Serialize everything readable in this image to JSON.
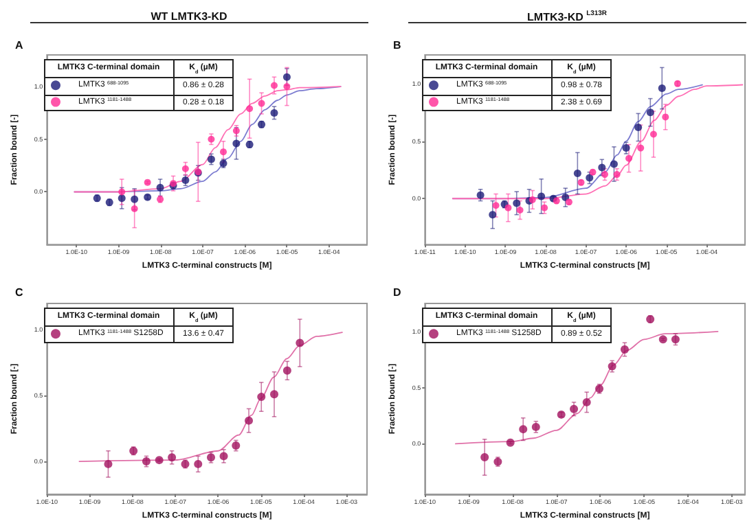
{
  "chart_data": [
    {
      "type": "scatter",
      "title": "WT LMTK3-KD",
      "subtitle": "A",
      "xlabel": "LMTK3 C-terminal constructs [M]",
      "ylabel": "Fraction bound [-]",
      "legend_title": "LMTK3 C-terminal domain",
      "legend": "top left",
      "grid": false,
      "log": "x",
      "annotations": [
        "K$_{d}$ (µM)",
        "0.86 ± 0.28",
        "0.28 ± 0.18"
      ],
      "xlim": [
        2e-11,
        0.0008
      ],
      "xticks": [
        {
          "value": 1e-10,
          "label": "1.0E-10"
        },
        {
          "value": 1e-09,
          "label": "1.0E-09"
        },
        {
          "value": 1e-08,
          "label": "1.0E-08"
        },
        {
          "value": 1e-07,
          "label": "1.0E-07"
        },
        {
          "value": 1e-06,
          "label": "1.0E-06"
        },
        {
          "value": 1e-05,
          "label": "1.0E-05"
        },
        {
          "value": 0.0001,
          "label": "1.0E-04"
        }
      ],
      "ylim": [
        -0.5,
        1.3
      ],
      "yticks": [
        {
          "value": 0,
          "label": "0.0"
        },
        {
          "value": 0.5,
          "label": "0.5"
        },
        {
          "value": 1,
          "label": "1.0"
        }
      ],
      "series": [
        {
          "type": "line",
          "marker": "none",
          "color": "#7b7bd0",
          "x": [
            9e-11,
            1e-09,
            1e-08,
            3e-08,
            1e-07,
            2e-07,
            4e-07,
            8e-07,
            1.5e-06,
            3e-06,
            6e-06,
            1e-05,
            2e-05,
            5e-05,
            0.00019
          ],
          "values": [
            0,
            0,
            0.01,
            0.03,
            0.1,
            0.19,
            0.32,
            0.48,
            0.64,
            0.78,
            0.87,
            0.92,
            0.96,
            0.98,
            1.0
          ]
        },
        {
          "type": "line",
          "marker": "none",
          "color": "#ff6eb4",
          "x": [
            9e-11,
            1e-09,
            1e-08,
            3e-08,
            1e-07,
            2e-07,
            4e-07,
            8e-07,
            1.5e-06,
            3e-06,
            6e-06,
            1e-05,
            2e-05,
            0.00019
          ],
          "values": [
            0,
            0,
            0.03,
            0.1,
            0.26,
            0.42,
            0.59,
            0.74,
            0.84,
            0.91,
            0.96,
            0.97,
            0.99,
            1.0
          ]
        },
        {
          "type": "scatter",
          "marker": "circle",
          "name": "LMTK3 $^{688-1095}$",
          "color": "#1c1c78",
          "x": [
            3.1e-10,
            6.1e-10,
            1.2e-09,
            2.4e-09,
            4.9e-09,
            9.8e-09,
            2e-08,
            3.9e-08,
            7.8e-08,
            1.6e-07,
            3.1e-07,
            6.3e-07,
            1.3e-06,
            2.5e-06,
            5e-06,
            1e-05
          ],
          "values": [
            -0.06,
            -0.1,
            -0.06,
            -0.07,
            -0.05,
            0.04,
            0.06,
            0.11,
            0.18,
            0.31,
            0.27,
            0.46,
            0.45,
            0.64,
            0.75,
            1.09
          ],
          "errors": [
            0.03,
            0.03,
            0.1,
            0.1,
            0.02,
            0.08,
            0.03,
            0.05,
            0.07,
            0.05,
            0.04,
            0.15,
            0.03,
            0.03,
            0.06,
            0.08
          ]
        },
        {
          "type": "scatter",
          "marker": "circle",
          "name": "LMTK3 $^{1181-1488}$",
          "color": "#ff2a95",
          "x": [
            1.2e-09,
            2.4e-09,
            4.9e-09,
            9.8e-09,
            2e-08,
            3.9e-08,
            7.8e-08,
            1.6e-07,
            3.1e-07,
            6.3e-07,
            1.3e-06,
            2.5e-06,
            5e-06,
            1e-05
          ],
          "values": [
            0.0,
            -0.16,
            0.09,
            -0.07,
            0.08,
            0.22,
            0.19,
            0.5,
            0.38,
            0.58,
            0.79,
            0.84,
            1.01,
            1.0
          ],
          "errors": [
            0.12,
            0.18,
            0.01,
            0.03,
            0.07,
            0.06,
            0.28,
            0.05,
            0.1,
            0.05,
            0.28,
            0.1,
            0.08,
            0.18
          ]
        }
      ]
    },
    {
      "type": "scatter",
      "title": "LMTK3-KD $^{L313R}$",
      "subtitle": "B",
      "xlabel": "LMTK3 C-terminal constructs [M]",
      "ylabel": "Fraction bound [-]",
      "legend_title": "LMTK3 C-terminal domain",
      "legend": "top left",
      "grid": false,
      "log": "x",
      "annotations": [
        "K$_{d}$ (µM)",
        "0.98 ± 0.78",
        "2.38 ± 0.69"
      ],
      "xlim": [
        1e-11,
        0.0009
      ],
      "xticks": [
        {
          "value": 1e-11,
          "label": "1.0E-11"
        },
        {
          "value": 1e-10,
          "label": "1.0E-10"
        },
        {
          "value": 1e-09,
          "label": "1.0E-09"
        },
        {
          "value": 1e-08,
          "label": "1.0E-08"
        },
        {
          "value": 1e-07,
          "label": "1.0E-07"
        },
        {
          "value": 1e-06,
          "label": "1.0E-06"
        },
        {
          "value": 1e-05,
          "label": "1.0E-05"
        },
        {
          "value": 0.0001,
          "label": "1.0E-04"
        }
      ],
      "ylim": [
        -0.4,
        1.25
      ],
      "yticks": [
        {
          "value": 0,
          "label": "0.0"
        },
        {
          "value": 0.5,
          "label": "0.5"
        },
        {
          "value": 1,
          "label": "1.0"
        }
      ],
      "series": [
        {
          "type": "line",
          "marker": "none",
          "color": "#7b7bd0",
          "x": [
            4.9e-11,
            1e-09,
            1e-08,
            1e-07,
            3e-07,
            6e-07,
            1e-06,
            2e-06,
            4e-06,
            1e-05,
            2e-05,
            7.8e-05
          ],
          "values": [
            0,
            0,
            0.01,
            0.09,
            0.23,
            0.38,
            0.5,
            0.67,
            0.8,
            0.91,
            0.95,
            0.99
          ]
        },
        {
          "type": "line",
          "marker": "none",
          "color": "#ff6eb4",
          "x": [
            4.9e-11,
            1e-08,
            1e-07,
            3e-07,
            6e-07,
            1e-06,
            2.4e-06,
            5e-06,
            1e-05,
            2e-05,
            5e-05,
            0.0001,
            0.00078
          ],
          "values": [
            0,
            0,
            0.04,
            0.11,
            0.2,
            0.29,
            0.5,
            0.68,
            0.81,
            0.89,
            0.95,
            0.98,
            0.99
          ]
        },
        {
          "type": "scatter",
          "marker": "circle",
          "name": "LMTK3 $^{688-1095}$",
          "color": "#1c1c78",
          "x": [
            2.4e-10,
            4.8e-10,
            9.5e-10,
            1.9e-09,
            3.9e-09,
            7.8e-09,
            1.55e-08,
            3.1e-08,
            6.2e-08,
            1.23e-07,
            2.5e-07,
            5e-07,
            1e-06,
            2e-06,
            4e-06,
            7.8e-06
          ],
          "values": [
            0.03,
            -0.14,
            -0.05,
            -0.04,
            -0.02,
            0.02,
            0.0,
            0.01,
            0.22,
            0.18,
            0.27,
            0.3,
            0.44,
            0.62,
            0.75,
            0.96
          ],
          "errors": [
            0.05,
            0.12,
            0.03,
            0.1,
            0.1,
            0.15,
            0.02,
            0.08,
            0.18,
            0.05,
            0.07,
            0.15,
            0.05,
            0.12,
            0.12,
            0.18
          ]
        },
        {
          "type": "scatter",
          "marker": "circle",
          "name": "LMTK3 $^{1181-1488}$",
          "color": "#ff2a95",
          "x": [
            5.8e-10,
            1.17e-09,
            2.3e-09,
            4.7e-09,
            9.3e-09,
            1.86e-08,
            3.8e-08,
            7.6e-08,
            1.48e-07,
            2.95e-07,
            5.9e-07,
            1.17e-06,
            2.3e-06,
            4.8e-06,
            9.5e-06,
            1.9e-05
          ],
          "values": [
            -0.06,
            -0.08,
            -0.1,
            -0.01,
            -0.08,
            -0.02,
            -0.03,
            0.14,
            0.23,
            0.21,
            0.21,
            0.35,
            0.44,
            0.56,
            0.71,
            1.0
          ],
          "errors": [
            0.1,
            0.12,
            0.08,
            0.08,
            0.05,
            0.02,
            0.02,
            0.02,
            0.02,
            0.05,
            0.05,
            0.12,
            0.2,
            0.2,
            0.11,
            0.02
          ]
        }
      ]
    },
    {
      "type": "scatter",
      "subtitle": "C",
      "xlabel": "LMTK3 C-terminal constructs [M]",
      "ylabel": "Fraction bound [-]",
      "legend_title": "LMTK3 C-terminal domain",
      "legend": "top left",
      "grid": false,
      "log": "x",
      "annotations": [
        "K$_{d}$ (µM)",
        "13.6 ± 0.47"
      ],
      "xlim": [
        1e-10,
        0.003
      ],
      "xticks": [
        {
          "value": 1e-10,
          "label": "1.0E-10"
        },
        {
          "value": 1e-09,
          "label": "1.0E-09"
        },
        {
          "value": 1e-08,
          "label": "1.0E-08"
        },
        {
          "value": 1e-07,
          "label": "1.0E-07"
        },
        {
          "value": 1e-06,
          "label": "1.0E-06"
        },
        {
          "value": 1e-05,
          "label": "1.0E-05"
        },
        {
          "value": 0.0001,
          "label": "1.0E-04"
        },
        {
          "value": 0.001,
          "label": "1.0E-03"
        }
      ],
      "ylim": [
        -0.25,
        1.2
      ],
      "yticks": [
        {
          "value": 0,
          "label": "0.0"
        },
        {
          "value": 0.5,
          "label": "0.5"
        },
        {
          "value": 1,
          "label": "1.0"
        }
      ],
      "series": [
        {
          "type": "line",
          "marker": "none",
          "color": "#e070a8",
          "x": [
            5.7e-10,
            1e-07,
            1e-06,
            3e-06,
            6e-06,
            1e-05,
            2e-05,
            4e-05,
            8e-05,
            0.0002,
            0.00079
          ],
          "values": [
            0,
            0.01,
            0.08,
            0.2,
            0.35,
            0.48,
            0.64,
            0.78,
            0.88,
            0.95,
            0.98
          ]
        },
        {
          "type": "scatter",
          "marker": "circle",
          "name": "LMTK3 $^{1181-1488}$ S1258D",
          "color": "#a3125f",
          "x": [
            2.7e-09,
            1.05e-08,
            2.1e-08,
            4.2e-08,
            8.3e-08,
            1.7e-07,
            3.4e-07,
            6.8e-07,
            1.35e-06,
            2.6e-06,
            5.2e-06,
            1.02e-05,
            2.04e-05,
            4.1e-05,
            8.1e-05
          ],
          "values": [
            -0.02,
            0.08,
            0.0,
            0.01,
            0.03,
            -0.02,
            -0.02,
            0.03,
            0.04,
            0.12,
            0.31,
            0.49,
            0.51,
            0.69,
            0.9
          ],
          "errors": [
            0.1,
            0.03,
            0.04,
            0.01,
            0.05,
            0.03,
            0.06,
            0.04,
            0.05,
            0.04,
            0.09,
            0.11,
            0.17,
            0.07,
            0.18
          ]
        }
      ]
    },
    {
      "type": "scatter",
      "subtitle": "D",
      "xlabel": "LMTK3 C-terminal constructs [M]",
      "ylabel": "Fraction bound [-]",
      "legend_title": "LMTK3 C-terminal domain",
      "legend": "top left",
      "grid": false,
      "log": "x",
      "annotations": [
        "K$_{d}$ (µM)",
        "0.89 ± 0.52"
      ],
      "xlim": [
        1e-10,
        0.002
      ],
      "xticks": [
        {
          "value": 1e-10,
          "label": "1.0E-10"
        },
        {
          "value": 1e-09,
          "label": "1.0E-09"
        },
        {
          "value": 1e-08,
          "label": "1.0E-08"
        },
        {
          "value": 1e-07,
          "label": "1.0E-07"
        },
        {
          "value": 1e-06,
          "label": "1.0E-06"
        },
        {
          "value": 1e-05,
          "label": "1.0E-05"
        },
        {
          "value": 0.0001,
          "label": "1.0E-04"
        },
        {
          "value": 0.001,
          "label": "1.0E-03"
        }
      ],
      "ylim": [
        -0.45,
        1.25
      ],
      "yticks": [
        {
          "value": 0,
          "label": "0.0"
        },
        {
          "value": 0.5,
          "label": "0.5"
        },
        {
          "value": 1,
          "label": "1.0"
        }
      ],
      "series": [
        {
          "type": "line",
          "marker": "none",
          "color": "#e070a8",
          "x": [
            5e-10,
            1e-08,
            3e-08,
            1e-07,
            3e-07,
            6e-07,
            1e-06,
            2e-06,
            4e-06,
            1e-05,
            3e-05,
            0.00048
          ],
          "values": [
            0,
            0.02,
            0.05,
            0.12,
            0.27,
            0.41,
            0.52,
            0.7,
            0.83,
            0.93,
            0.98,
            1.0
          ]
        },
        {
          "type": "scatter",
          "marker": "circle",
          "name": "LMTK3 $^{1181-1488}$ S1258D",
          "color": "#a3125f",
          "x": [
            2.3e-09,
            4.6e-09,
            8.9e-09,
            1.74e-08,
            3.4e-08,
            1.29e-07,
            2.5e-07,
            4.9e-07,
            9.5e-07,
            1.86e-06,
            3.6e-06,
            1.38e-05,
            2.7e-05,
            5.2e-05
          ],
          "values": [
            -0.12,
            -0.16,
            0.01,
            0.13,
            0.15,
            0.26,
            0.31,
            0.37,
            0.49,
            0.69,
            0.84,
            1.11,
            0.93,
            0.93
          ],
          "errors": [
            0.16,
            0.04,
            0.01,
            0.1,
            0.05,
            0.02,
            0.06,
            0.09,
            0.04,
            0.05,
            0.06,
            0.03,
            0.01,
            0.05
          ]
        }
      ]
    }
  ]
}
